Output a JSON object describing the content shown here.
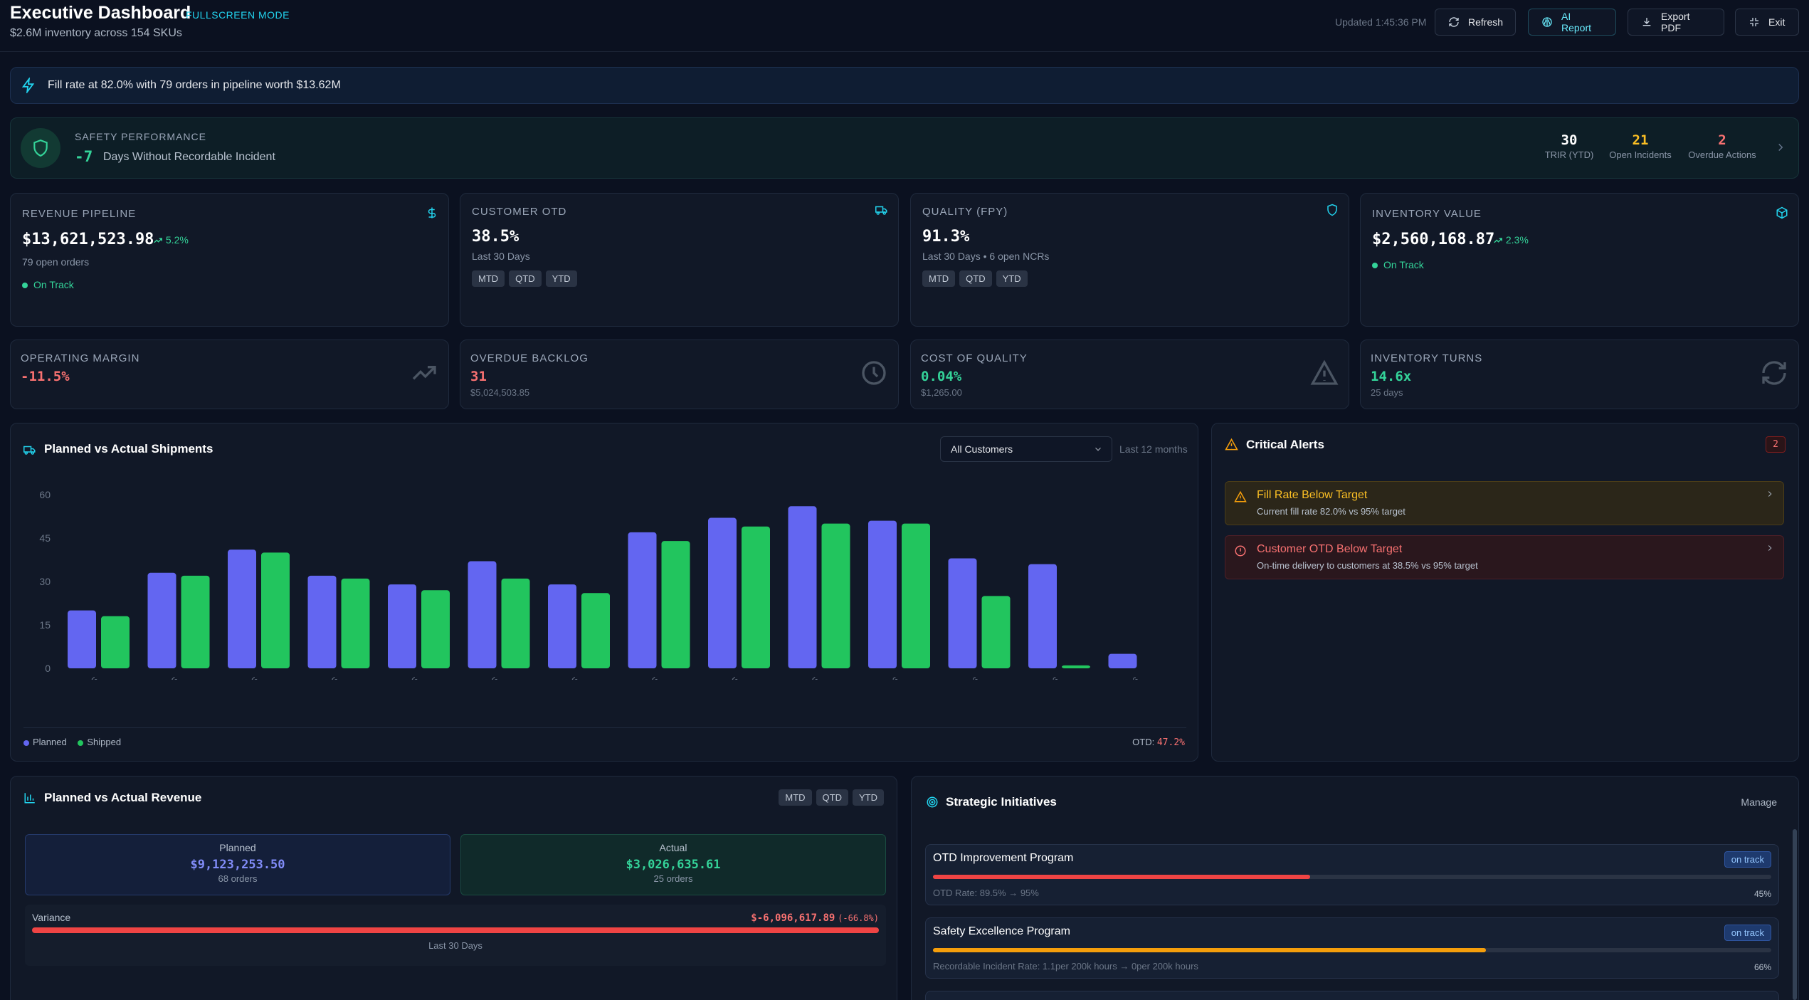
{
  "header": {
    "title": "Executive Dashboard",
    "mode_badge": "FULLSCREEN MODE",
    "subtitle": "$2.6M inventory across 154 SKUs",
    "updated": "Updated 1:45:36 PM",
    "buttons": {
      "refresh": "Refresh",
      "ai_report": "AI Report",
      "export_pdf": "Export PDF",
      "exit": "Exit"
    }
  },
  "banner": {
    "text": "Fill rate at 82.0% with 79 orders in pipeline worth $13.62M"
  },
  "safety": {
    "label": "SAFETY PERFORMANCE",
    "days_value": "-7",
    "days_label": "Days Without Recordable Incident",
    "stats": [
      {
        "value": "30",
        "label": "TRIR (YTD)"
      },
      {
        "value": "21",
        "label": "Open Incidents"
      },
      {
        "value": "2",
        "label": "Overdue Actions"
      }
    ]
  },
  "kpis": {
    "revenue": {
      "label": "REVENUE PIPELINE",
      "value": "$13,621,523.98",
      "trend": "5.2%",
      "sub": "79 open orders",
      "status": "On Track"
    },
    "otd": {
      "label": "CUSTOMER OTD",
      "value": "38.5%",
      "sub": "Last 30 Days",
      "pills": [
        "MTD",
        "QTD",
        "YTD"
      ]
    },
    "quality": {
      "label": "QUALITY (FPY)",
      "value": "91.3%",
      "sub": "Last 30 Days • 6 open NCRs",
      "pills": [
        "MTD",
        "QTD",
        "YTD"
      ]
    },
    "inventory": {
      "label": "INVENTORY VALUE",
      "value": "$2,560,168.87",
      "trend": "2.3%",
      "status": "On Track"
    }
  },
  "metrics": {
    "margin": {
      "label": "OPERATING MARGIN",
      "value": "-11.5%"
    },
    "backlog": {
      "label": "OVERDUE BACKLOG",
      "value": "31",
      "sub": "$5,024,503.85"
    },
    "coq": {
      "label": "COST OF QUALITY",
      "value": "0.04%",
      "sub": "$1,265.00"
    },
    "turns": {
      "label": "INVENTORY TURNS",
      "value": "14.6x",
      "sub": "25 days"
    }
  },
  "shipments": {
    "title": "Planned vs Actual Shipments",
    "filter": "All Customers",
    "range": "Last 12 months",
    "otd_label": "OTD:",
    "otd_value": "47.2%"
  },
  "chart_data": {
    "type": "bar",
    "categories": [
      "Mar 2025",
      "Apr 2025",
      "May 2025",
      "Jun 2025",
      "Jul 2025",
      "Aug 2025",
      "Sep 2025",
      "Oct 2025",
      "Nov 2025",
      "Dec 2025",
      "Jan 2026",
      "Feb 2026",
      "Mar 2026",
      "Apr 2026"
    ],
    "series": [
      {
        "name": "Planned",
        "color": "#6366f1",
        "values": [
          20,
          33,
          41,
          32,
          29,
          37,
          29,
          47,
          52,
          56,
          51,
          38,
          36,
          5
        ]
      },
      {
        "name": "Shipped",
        "color": "#22c55e",
        "values": [
          18,
          32,
          40,
          31,
          27,
          31,
          26,
          44,
          49,
          50,
          50,
          25,
          1,
          0
        ]
      }
    ],
    "yticks": [
      "0",
      "15",
      "30",
      "45",
      "60"
    ],
    "ylim": [
      0,
      60
    ],
    "legend": "bottom-left"
  },
  "alerts": {
    "title": "Critical Alerts",
    "count": "2",
    "items": [
      {
        "title": "Fill Rate Below Target",
        "desc": "Current fill rate 82.0% vs 95% target"
      },
      {
        "title": "Customer OTD Below Target",
        "desc": "On-time delivery to customers at 38.5% vs 95% target"
      }
    ]
  },
  "revenue_panel": {
    "title": "Planned vs Actual Revenue",
    "pills": [
      "MTD",
      "QTD",
      "YTD"
    ],
    "planned": {
      "label": "Planned",
      "value": "$9,123,253.50",
      "sub": "68 orders"
    },
    "actual": {
      "label": "Actual",
      "value": "$3,026,635.61",
      "sub": "25 orders"
    },
    "variance": {
      "label": "Variance",
      "value": "$-6,096,617.89",
      "pct": "(-66.8%)",
      "period": "Last 30 Days"
    }
  },
  "initiatives": {
    "title": "Strategic Initiatives",
    "manage": "Manage",
    "items": [
      {
        "name": "OTD Improvement Program",
        "status": "on track",
        "detail": "OTD Rate: 89.5% → 95%",
        "progress": "45%",
        "progress_value": 0.45,
        "color": "#ef4444"
      },
      {
        "name": "Safety Excellence Program",
        "status": "on track",
        "detail": "Recordable Incident Rate: 1.1per 200k hours → 0per 200k hours",
        "progress": "66%",
        "progress_value": 0.66,
        "color": "#f59e0b"
      }
    ]
  }
}
